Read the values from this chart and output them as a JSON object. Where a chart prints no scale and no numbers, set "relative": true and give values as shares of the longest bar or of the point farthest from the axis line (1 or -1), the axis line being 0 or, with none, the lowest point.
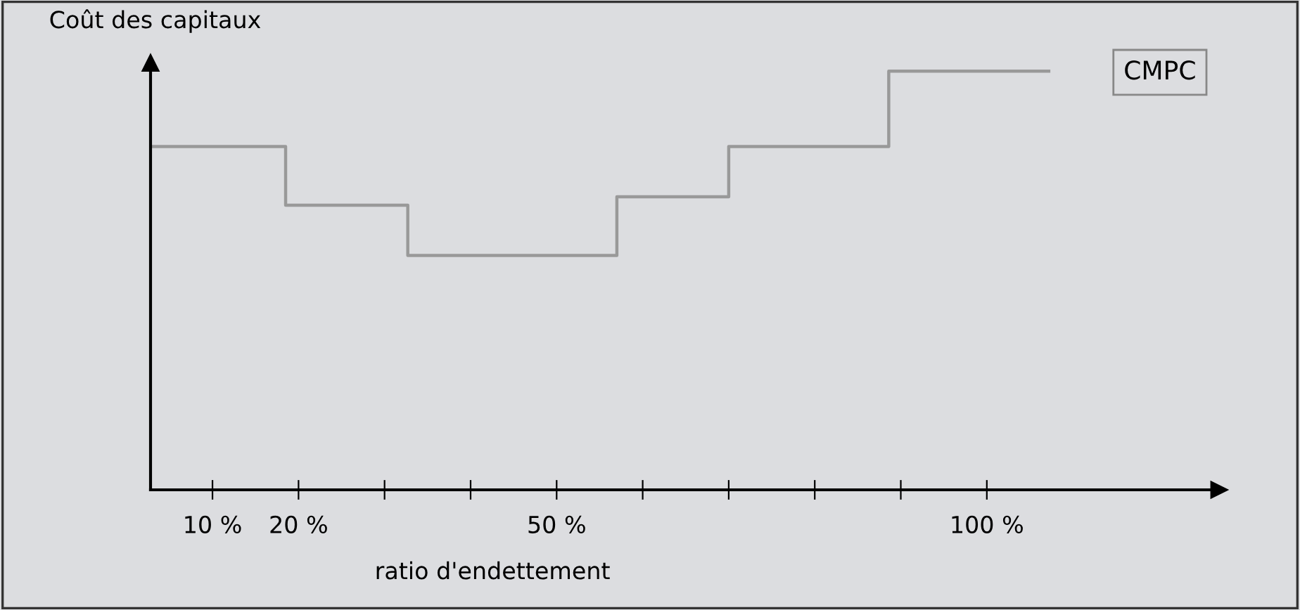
{
  "chart_data": {
    "type": "step",
    "ylabel": "Coût des capitaux",
    "xlabel": "ratio d'endettement",
    "relative": true,
    "x": [
      2.8,
      18.5,
      32.7,
      57,
      70,
      88.6,
      107.2
    ],
    "series": [
      {
        "name": "CMPC",
        "color": "#999999",
        "values": [
          0.82,
          0.68,
          0.56,
          0.7,
          0.82,
          1.0,
          1.0
        ]
      }
    ],
    "xlim": [
      2.8,
      127
    ],
    "xticks": [
      {
        "value": 10,
        "label": "10 %"
      },
      {
        "value": 20,
        "label": "20 %"
      },
      {
        "value": 30,
        "label": null
      },
      {
        "value": 40,
        "label": null
      },
      {
        "value": 50,
        "label": "50 %"
      },
      {
        "value": 60,
        "label": null
      },
      {
        "value": 70,
        "label": null
      },
      {
        "value": 80,
        "label": null
      },
      {
        "value": 90,
        "label": null
      },
      {
        "value": 100,
        "label": "100 %"
      }
    ],
    "legend": "top right",
    "grid": false
  }
}
